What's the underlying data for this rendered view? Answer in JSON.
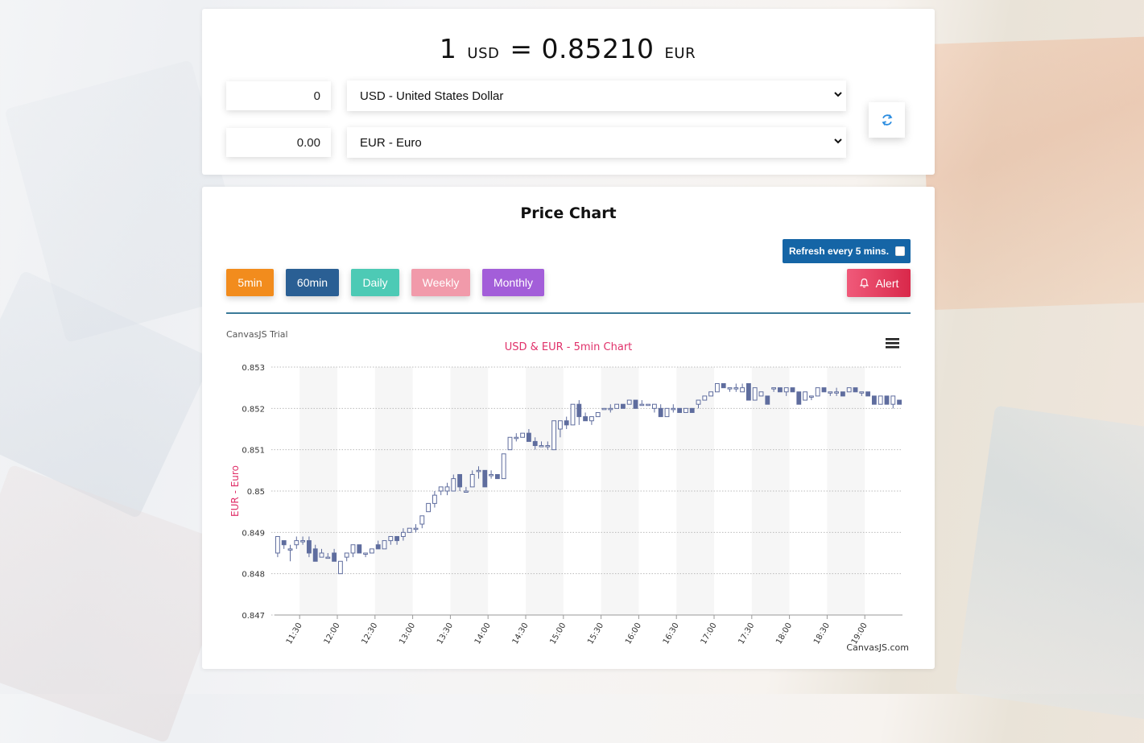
{
  "converter": {
    "amount_from": "1",
    "from_code": "USD",
    "equals": "=",
    "rate": "0.85210",
    "to_code": "EUR",
    "input_from_value": "0",
    "input_to_value": "0.00",
    "select_from": "USD - United States Dollar",
    "select_to": "EUR - Euro"
  },
  "chart_panel": {
    "title": "Price Chart",
    "refresh_label": "Refresh every 5 mins.",
    "timeframes": [
      {
        "label": "5min",
        "color": "#f28c1d"
      },
      {
        "label": "60min",
        "color": "#2a5f94"
      },
      {
        "label": "Daily",
        "color": "#4dcab5"
      },
      {
        "label": "Weekly",
        "color": "#f19aaa"
      },
      {
        "label": "Monthly",
        "color": "#a35ed9"
      }
    ],
    "alert_label": "Alert",
    "trial_text": "CanvasJS Trial",
    "credit_text": "CanvasJS.com"
  },
  "chart_data": {
    "type": "candlestick",
    "title": "USD & EUR - 5min Chart",
    "ylabel": "EUR - Euro",
    "xlabel": "",
    "ylim": [
      0.847,
      0.853
    ],
    "yticks": [
      "0.853",
      "0.852",
      "0.851",
      "0.85",
      "0.849",
      "0.848",
      "0.847"
    ],
    "xticks": [
      "11:30",
      "12:00",
      "12:30",
      "13:00",
      "13:30",
      "14:00",
      "14:30",
      "15:00",
      "15:30",
      "16:00",
      "16:30",
      "17:00",
      "17:30",
      "18:00",
      "18:30",
      "19:00"
    ],
    "x_start": "11:10",
    "interval_min": 5,
    "series_color": "#5f6d9e",
    "menu_icon": "hamburger-menu-icon",
    "ohlc": [
      [
        0.8485,
        0.8489,
        0.8484,
        0.8489
      ],
      [
        0.8488,
        0.8488,
        0.8486,
        0.8487
      ],
      [
        0.8486,
        0.8487,
        0.8483,
        0.8486
      ],
      [
        0.8487,
        0.8489,
        0.8486,
        0.8488
      ],
      [
        0.8488,
        0.8489,
        0.8487,
        0.8488
      ],
      [
        0.8488,
        0.8489,
        0.8484,
        0.8485
      ],
      [
        0.8486,
        0.8487,
        0.8483,
        0.8483
      ],
      [
        0.8484,
        0.8486,
        0.8484,
        0.8485
      ],
      [
        0.8484,
        0.8485,
        0.8484,
        0.8484
      ],
      [
        0.8485,
        0.8486,
        0.8483,
        0.8483
      ],
      [
        0.848,
        0.8483,
        0.848,
        0.8483
      ],
      [
        0.8484,
        0.8485,
        0.8483,
        0.8485
      ],
      [
        0.8485,
        0.8487,
        0.8484,
        0.8487
      ],
      [
        0.8487,
        0.8487,
        0.8485,
        0.8485
      ],
      [
        0.8485,
        0.8485,
        0.8484,
        0.8485
      ],
      [
        0.8485,
        0.8486,
        0.8485,
        0.8486
      ],
      [
        0.8487,
        0.8488,
        0.8486,
        0.8486
      ],
      [
        0.8486,
        0.8488,
        0.8486,
        0.8488
      ],
      [
        0.8488,
        0.8489,
        0.8487,
        0.8489
      ],
      [
        0.8489,
        0.8489,
        0.8487,
        0.8488
      ],
      [
        0.8489,
        0.8491,
        0.8488,
        0.849
      ],
      [
        0.849,
        0.8491,
        0.849,
        0.8491
      ],
      [
        0.8491,
        0.8492,
        0.849,
        0.8491
      ],
      [
        0.8492,
        0.8494,
        0.8491,
        0.8494
      ],
      [
        0.8495,
        0.8497,
        0.8495,
        0.8497
      ],
      [
        0.8497,
        0.85,
        0.8496,
        0.8499
      ],
      [
        0.85,
        0.8501,
        0.8499,
        0.8501
      ],
      [
        0.85,
        0.8502,
        0.8499,
        0.8501
      ],
      [
        0.85,
        0.8504,
        0.85,
        0.8503
      ],
      [
        0.8504,
        0.8504,
        0.85,
        0.8501
      ],
      [
        0.85,
        0.8501,
        0.85,
        0.85
      ],
      [
        0.8501,
        0.8505,
        0.8501,
        0.8504
      ],
      [
        0.8505,
        0.8506,
        0.8503,
        0.8505
      ],
      [
        0.8505,
        0.8505,
        0.8501,
        0.8501
      ],
      [
        0.8504,
        0.8505,
        0.8503,
        0.8504
      ],
      [
        0.8504,
        0.8504,
        0.8503,
        0.8503
      ],
      [
        0.8503,
        0.8509,
        0.8503,
        0.8509
      ],
      [
        0.851,
        0.8513,
        0.851,
        0.8513
      ],
      [
        0.8513,
        0.8514,
        0.8512,
        0.8513
      ],
      [
        0.8513,
        0.8514,
        0.8513,
        0.8514
      ],
      [
        0.8514,
        0.8515,
        0.8512,
        0.8512
      ],
      [
        0.8512,
        0.8513,
        0.851,
        0.8511
      ],
      [
        0.8511,
        0.8512,
        0.8511,
        0.8511
      ],
      [
        0.8511,
        0.8512,
        0.851,
        0.8511
      ],
      [
        0.851,
        0.8517,
        0.851,
        0.8517
      ],
      [
        0.8515,
        0.8517,
        0.8513,
        0.8517
      ],
      [
        0.8517,
        0.8518,
        0.8515,
        0.8516
      ],
      [
        0.8516,
        0.8521,
        0.8516,
        0.8521
      ],
      [
        0.8521,
        0.8522,
        0.8516,
        0.8518
      ],
      [
        0.8518,
        0.8519,
        0.8517,
        0.8517
      ],
      [
        0.8517,
        0.8518,
        0.8516,
        0.8518
      ],
      [
        0.8518,
        0.8519,
        0.8518,
        0.8519
      ],
      [
        0.852,
        0.852,
        0.852,
        0.852
      ],
      [
        0.852,
        0.8521,
        0.8519,
        0.852
      ],
      [
        0.852,
        0.8521,
        0.852,
        0.8521
      ],
      [
        0.8521,
        0.8521,
        0.852,
        0.852
      ],
      [
        0.8521,
        0.8522,
        0.8521,
        0.8522
      ],
      [
        0.8522,
        0.8522,
        0.852,
        0.852
      ],
      [
        0.8521,
        0.8522,
        0.8521,
        0.8521
      ],
      [
        0.8521,
        0.8521,
        0.8521,
        0.8521
      ],
      [
        0.852,
        0.8521,
        0.8519,
        0.8521
      ],
      [
        0.852,
        0.8521,
        0.8518,
        0.8518
      ],
      [
        0.8518,
        0.852,
        0.8518,
        0.852
      ],
      [
        0.852,
        0.8521,
        0.8519,
        0.852
      ],
      [
        0.852,
        0.852,
        0.8519,
        0.8519
      ],
      [
        0.8519,
        0.852,
        0.8519,
        0.852
      ],
      [
        0.852,
        0.852,
        0.8519,
        0.8519
      ],
      [
        0.8521,
        0.8522,
        0.852,
        0.8522
      ],
      [
        0.8522,
        0.8523,
        0.8522,
        0.8523
      ],
      [
        0.8523,
        0.8524,
        0.8523,
        0.8524
      ],
      [
        0.8524,
        0.8526,
        0.8524,
        0.8526
      ],
      [
        0.8526,
        0.8526,
        0.8525,
        0.8525
      ],
      [
        0.8525,
        0.8525,
        0.8524,
        0.8525
      ],
      [
        0.8525,
        0.8526,
        0.8524,
        0.8525
      ],
      [
        0.8524,
        0.8526,
        0.8524,
        0.8525
      ],
      [
        0.8526,
        0.8526,
        0.8522,
        0.8522
      ],
      [
        0.8522,
        0.8525,
        0.8522,
        0.8525
      ],
      [
        0.8523,
        0.8524,
        0.8523,
        0.8524
      ],
      [
        0.8523,
        0.8523,
        0.8521,
        0.8521
      ],
      [
        0.8525,
        0.8525,
        0.8524,
        0.8525
      ],
      [
        0.8525,
        0.8525,
        0.8524,
        0.8524
      ],
      [
        0.8524,
        0.8525,
        0.8523,
        0.8525
      ],
      [
        0.8525,
        0.8525,
        0.8524,
        0.8524
      ],
      [
        0.8524,
        0.8524,
        0.8521,
        0.8521
      ],
      [
        0.8522,
        0.8524,
        0.8522,
        0.8524
      ],
      [
        0.8523,
        0.8523,
        0.8522,
        0.8523
      ],
      [
        0.8523,
        0.8525,
        0.8523,
        0.8525
      ],
      [
        0.8525,
        0.8525,
        0.8524,
        0.8524
      ],
      [
        0.8524,
        0.8524,
        0.8523,
        0.8524
      ],
      [
        0.8524,
        0.8525,
        0.8523,
        0.8524
      ],
      [
        0.8524,
        0.8524,
        0.8523,
        0.8523
      ],
      [
        0.8524,
        0.8525,
        0.8524,
        0.8525
      ],
      [
        0.8525,
        0.8525,
        0.8524,
        0.8524
      ],
      [
        0.8524,
        0.8524,
        0.8523,
        0.8524
      ],
      [
        0.8524,
        0.8524,
        0.8523,
        0.8523
      ],
      [
        0.8523,
        0.8523,
        0.8521,
        0.8521
      ],
      [
        0.8521,
        0.8523,
        0.8521,
        0.8523
      ],
      [
        0.8523,
        0.8523,
        0.8521,
        0.8521
      ],
      [
        0.8521,
        0.8523,
        0.852,
        0.8523
      ],
      [
        0.8522,
        0.8522,
        0.8521,
        0.8521
      ]
    ]
  }
}
